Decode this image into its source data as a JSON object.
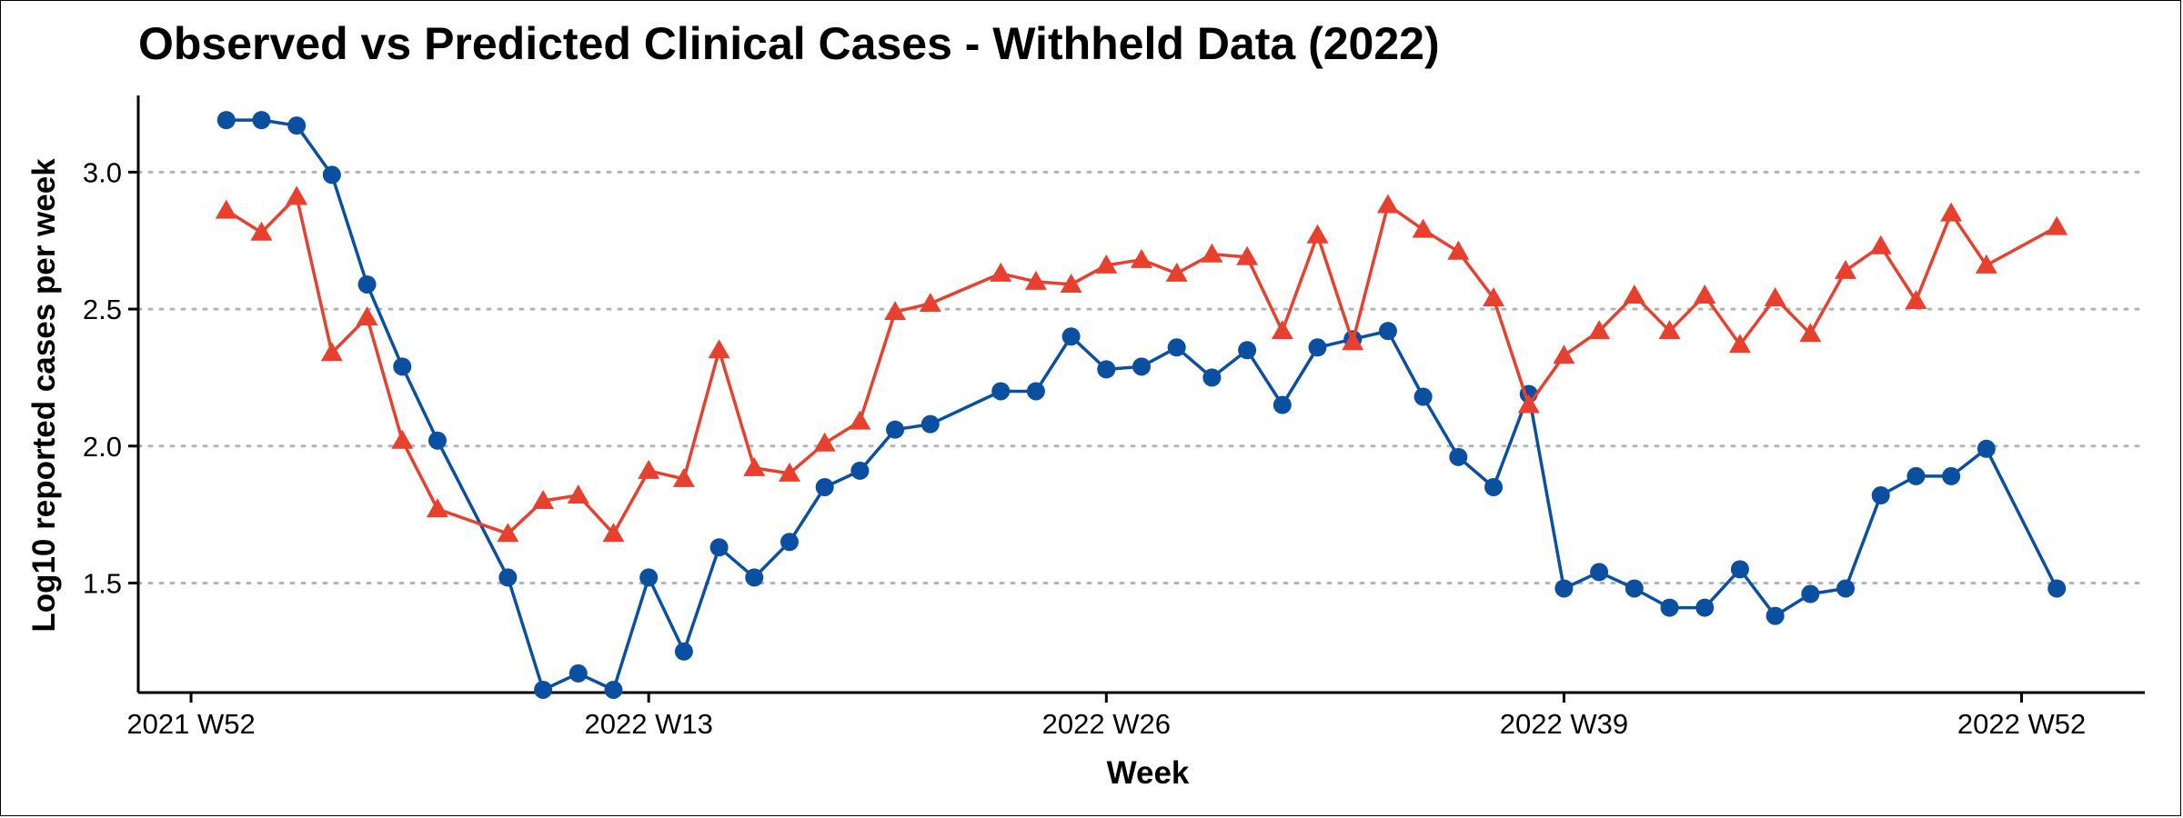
{
  "chart_data": {
    "type": "line",
    "title": "Observed vs Predicted Clinical Cases - Withheld Data (2022)",
    "xlabel": "Week",
    "ylabel": "Log10 reported cases per week",
    "x_tick_labels": [
      "2021 W52",
      "2022 W13",
      "2022 W26",
      "2022 W39",
      "2022 W52"
    ],
    "x_ticks_week_index": [
      0,
      13,
      26,
      39,
      52
    ],
    "y_ticks": [
      "1.5",
      "2.0",
      "2.5",
      "3.0"
    ],
    "ylim": [
      1.1,
      3.28
    ],
    "xlim": [
      -1.5,
      55.5
    ],
    "grid": "horizontal dotted",
    "legend": "none",
    "series": [
      {
        "color": "#0b4fa0",
        "marker": "circle",
        "points": [
          [
            1,
            3.19
          ],
          [
            2,
            3.19
          ],
          [
            3,
            3.17
          ],
          [
            4,
            2.99
          ],
          [
            5,
            2.59
          ],
          [
            6,
            2.29
          ],
          [
            7,
            2.02
          ],
          [
            9,
            1.52
          ],
          [
            10,
            1.11
          ],
          [
            11,
            1.17
          ],
          [
            12,
            1.11
          ],
          [
            13,
            1.52
          ],
          [
            14,
            1.25
          ],
          [
            15,
            1.63
          ],
          [
            16,
            1.52
          ],
          [
            17,
            1.65
          ],
          [
            18,
            1.85
          ],
          [
            19,
            1.91
          ],
          [
            20,
            2.06
          ],
          [
            21,
            2.08
          ],
          [
            23,
            2.2
          ],
          [
            24,
            2.2
          ],
          [
            25,
            2.4
          ],
          [
            26,
            2.28
          ],
          [
            27,
            2.29
          ],
          [
            28,
            2.36
          ],
          [
            29,
            2.25
          ],
          [
            30,
            2.35
          ],
          [
            31,
            2.15
          ],
          [
            32,
            2.36
          ],
          [
            33,
            2.39
          ],
          [
            34,
            2.42
          ],
          [
            35,
            2.18
          ],
          [
            36,
            1.96
          ],
          [
            37,
            1.85
          ],
          [
            38,
            2.19
          ],
          [
            39,
            1.48
          ],
          [
            40,
            1.54
          ],
          [
            41,
            1.48
          ],
          [
            42,
            1.41
          ],
          [
            43,
            1.41
          ],
          [
            44,
            1.55
          ],
          [
            45,
            1.38
          ],
          [
            46,
            1.46
          ],
          [
            47,
            1.48
          ],
          [
            48,
            1.82
          ],
          [
            49,
            1.89
          ],
          [
            50,
            1.89
          ],
          [
            51,
            1.99
          ],
          [
            53,
            1.48
          ]
        ]
      },
      {
        "color": "#e8402f",
        "marker": "triangle",
        "points": [
          [
            1,
            2.86
          ],
          [
            2,
            2.78
          ],
          [
            3,
            2.91
          ],
          [
            4,
            2.34
          ],
          [
            5,
            2.47
          ],
          [
            6,
            2.02
          ],
          [
            7,
            1.77
          ],
          [
            9,
            1.68
          ],
          [
            10,
            1.8
          ],
          [
            11,
            1.82
          ],
          [
            12,
            1.68
          ],
          [
            13,
            1.91
          ],
          [
            14,
            1.88
          ],
          [
            15,
            2.35
          ],
          [
            16,
            1.92
          ],
          [
            17,
            1.9
          ],
          [
            18,
            2.01
          ],
          [
            19,
            2.09
          ],
          [
            20,
            2.49
          ],
          [
            21,
            2.52
          ],
          [
            23,
            2.63
          ],
          [
            24,
            2.6
          ],
          [
            25,
            2.59
          ],
          [
            26,
            2.66
          ],
          [
            27,
            2.68
          ],
          [
            28,
            2.63
          ],
          [
            29,
            2.7
          ],
          [
            30,
            2.69
          ],
          [
            31,
            2.42
          ],
          [
            32,
            2.77
          ],
          [
            33,
            2.38
          ],
          [
            34,
            2.88
          ],
          [
            35,
            2.79
          ],
          [
            36,
            2.71
          ],
          [
            37,
            2.54
          ],
          [
            38,
            2.15
          ],
          [
            39,
            2.33
          ],
          [
            40,
            2.42
          ],
          [
            41,
            2.55
          ],
          [
            42,
            2.42
          ],
          [
            43,
            2.55
          ],
          [
            44,
            2.37
          ],
          [
            45,
            2.54
          ],
          [
            46,
            2.41
          ],
          [
            47,
            2.64
          ],
          [
            48,
            2.73
          ],
          [
            49,
            2.53
          ],
          [
            50,
            2.85
          ],
          [
            51,
            2.66
          ],
          [
            53,
            2.8
          ]
        ]
      }
    ]
  }
}
